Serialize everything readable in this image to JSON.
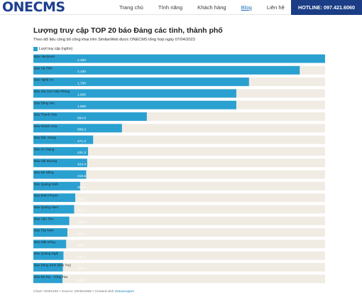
{
  "header": {
    "logo": "ONECMS",
    "nav": [
      "Trang chủ",
      "Tính năng",
      "Khách hàng",
      "Blog",
      "Liên hệ"
    ],
    "active_nav": "Blog",
    "hotline": "HOTLINE: 097.421.6060"
  },
  "colors": {
    "bar": "#2aa0d0",
    "track": "#f0ece4",
    "brand": "#1b3d86",
    "label_bg": "#ffffff"
  },
  "footer": {
    "prefix": "Chart: ONECMS • Source: SimilarWeb • Created with",
    "link": "Datawrapper"
  },
  "chart_data": {
    "type": "bar",
    "orientation": "horizontal",
    "title": "Lượng truy cập TOP 20 báo Đảng các tỉnh, thành phố",
    "subtitle": "Theo dữ liệu công bố công khai trên SimilarWeb được ONECMS tổng hợp ngày 07/04/2023",
    "legend": [
      "Lượt truy cập (nghìn)"
    ],
    "legend_placement": "top-left",
    "xlim": [
      0,
      2300
    ],
    "grid": false,
    "categories": [
      "Báo Hànộimới",
      "Báo Hà Tĩnh",
      "Báo Nghệ An",
      "Báo Sài Gòn Giải Phóng",
      "Báo Đồng Nai",
      "Báo Thanh Hóa",
      "Báo Khánh Hòa",
      "Báo Bắc Giang",
      "Báo An Giang",
      "Báo Hải Dương",
      "Báo Đà Nẵng",
      "Báo Quảng Ninh",
      "Báo Bình Phước",
      "Báo Quảng Nam",
      "Báo Cần Thơ",
      "Báo Tây Ninh",
      "Báo Đắk Nông",
      "Báo Quảng Ngãi",
      "Báo Đồng Khởi (Bến Tre)",
      "Báo Bà Rịa - Vũng Tàu"
    ],
    "values": [
      2300,
      2100,
      1700,
      1600,
      1600,
      894.6,
      698.2,
      471.2,
      431.3,
      424.4,
      416.5,
      368.8,
      330.2,
      321.3,
      283.3,
      268.2,
      258.4,
      237.4,
      232.8,
      229.8
    ],
    "value_labels": [
      "2,300",
      "2,100",
      "1,700",
      "1,600",
      "1,600",
      "894.6",
      "698.2",
      "471.2",
      "431.3",
      "424.4",
      "416.5",
      "368.8",
      "330.2",
      "321.3",
      "283.3",
      "268.2",
      "258.4",
      "237.4",
      "232.8",
      "229.8"
    ]
  }
}
